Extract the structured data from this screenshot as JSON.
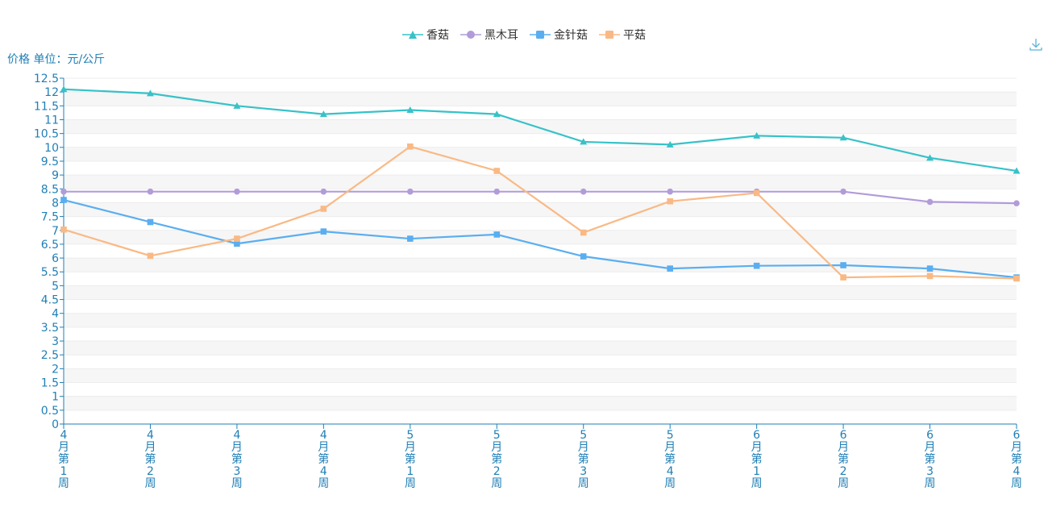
{
  "chart_data": {
    "type": "line",
    "ylabel": "价格 单位：元/公斤",
    "ylim": [
      0,
      12.5
    ],
    "yticks": [
      "0",
      "0.5",
      "1",
      "1.5",
      "2",
      "2.5",
      "3",
      "3.5",
      "4",
      "4.5",
      "5",
      "5.5",
      "6",
      "6.5",
      "7",
      "7.5",
      "8",
      "8.5",
      "9",
      "9.5",
      "10",
      "10.5",
      "11",
      "11.5",
      "12",
      "12.5"
    ],
    "categories": [
      "4月第1周",
      "4月第2周",
      "4月第3周",
      "4月第4周",
      "5月第1周",
      "5月第2周",
      "5月第3周",
      "5月第4周",
      "6月第1周",
      "6月第2周",
      "6月第3周",
      "6月第4周"
    ],
    "legend_position": "top-center",
    "grid": true,
    "series": [
      {
        "name": "香菇",
        "color": "#37c2c8",
        "marker": "triangle",
        "values": [
          12.1,
          11.95,
          11.5,
          11.2,
          11.35,
          11.2,
          10.2,
          10.1,
          10.42,
          10.35,
          9.62,
          9.15
        ]
      },
      {
        "name": "黑木耳",
        "color": "#b19cd9",
        "marker": "circle",
        "values": [
          8.4,
          8.4,
          8.4,
          8.4,
          8.4,
          8.4,
          8.4,
          8.4,
          8.4,
          8.4,
          8.03,
          7.98
        ]
      },
      {
        "name": "金针菇",
        "color": "#5aaef0",
        "marker": "square",
        "values": [
          8.1,
          7.3,
          6.52,
          6.96,
          6.7,
          6.85,
          6.06,
          5.62,
          5.72,
          5.74,
          5.62,
          5.3
        ]
      },
      {
        "name": "平菇",
        "color": "#f9b985",
        "marker": "square",
        "values": [
          7.03,
          6.08,
          6.7,
          7.78,
          10.03,
          9.15,
          6.92,
          8.05,
          8.35,
          5.3,
          5.35,
          5.26
        ]
      }
    ]
  },
  "toolbar": {
    "download_icon": "download-icon"
  }
}
